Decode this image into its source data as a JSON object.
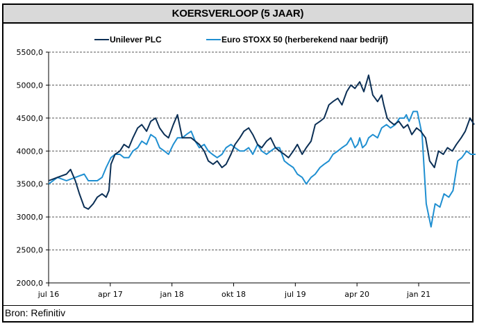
{
  "header": {
    "title": "KOERSVERLOOP (5 JAAR)"
  },
  "footer": {
    "source": "Bron: Refinitiv"
  },
  "colors": {
    "unilever": "#0b2f55",
    "stoxx": "#1f8fd1",
    "grid": "#555555"
  },
  "chart_data": {
    "type": "line",
    "title": "KOERSVERLOOP (5 JAAR)",
    "xlabel": "",
    "ylabel": "",
    "x_unit": "months since jul 16",
    "xlim": [
      0,
      62.5
    ],
    "ylim": [
      2000,
      5500
    ],
    "yticks": [
      2000,
      2500,
      3000,
      3500,
      4000,
      4500,
      5000,
      5500
    ],
    "ytick_labels": [
      "2000,0",
      "2500,0",
      "3000,0",
      "3500,0",
      "4000,0",
      "4500,0",
      "5000,0",
      "5500,0"
    ],
    "xticks": [
      0,
      9,
      18,
      27,
      36,
      45,
      54
    ],
    "xtick_labels": [
      "jul 16",
      "apr 17",
      "jan 18",
      "okt 18",
      "jul 19",
      "apr 20",
      "jan 21"
    ],
    "grid": true,
    "legend": "top",
    "series": [
      {
        "name": "Unilever PLC",
        "x": [
          0,
          1.3,
          2.6,
          3.2,
          3.9,
          4.5,
          5.2,
          5.8,
          6.5,
          7.1,
          7.8,
          8.4,
          8.8,
          9.1,
          9.7,
          10.4,
          11.0,
          11.7,
          12.3,
          13.0,
          13.6,
          14.3,
          14.9,
          15.6,
          16.2,
          16.9,
          17.5,
          18.2,
          18.8,
          19.5,
          20.8,
          22.0,
          22.7,
          23.3,
          24.0,
          24.6,
          25.3,
          25.9,
          26.6,
          27.2,
          27.9,
          28.5,
          29.2,
          29.8,
          30.5,
          31.1,
          31.8,
          32.4,
          33.1,
          33.7,
          34.4,
          35.0,
          35.7,
          36.3,
          37.0,
          37.6,
          38.3,
          38.9,
          39.6,
          40.2,
          40.9,
          41.5,
          42.2,
          42.8,
          43.5,
          44.1,
          44.7,
          45.4,
          46.0,
          46.7,
          47.3,
          48.0,
          48.6,
          48.9,
          49.4,
          49.8,
          50.4,
          51.1,
          51.8,
          52.4,
          53.0,
          53.7,
          54.3,
          55.0,
          55.6,
          56.3,
          56.9,
          57.6,
          58.2,
          58.9,
          59.5,
          60.2,
          60.8,
          61.5,
          62.1
        ],
        "values": [
          3550,
          3600,
          3650,
          3720,
          3550,
          3350,
          3150,
          3120,
          3200,
          3300,
          3350,
          3300,
          3400,
          3800,
          3950,
          4000,
          4100,
          4050,
          4200,
          4350,
          4400,
          4300,
          4450,
          4500,
          4350,
          4250,
          4200,
          4400,
          4550,
          4200,
          4200,
          4100,
          4000,
          3850,
          3800,
          3850,
          3750,
          3800,
          3950,
          4100,
          4200,
          4300,
          4350,
          4250,
          4100,
          4050,
          4150,
          4200,
          4050,
          4000,
          3950,
          3900,
          4000,
          4100,
          3950,
          4050,
          4150,
          4400,
          4450,
          4500,
          4700,
          4750,
          4800,
          4700,
          4900,
          5000,
          4950,
          5050,
          4900,
          5150,
          4850,
          4750,
          4850,
          4700,
          4500,
          4450,
          4400,
          4450,
          4350,
          4400,
          4250,
          4350,
          4300,
          4200,
          3850,
          3750,
          4000,
          3950,
          4050,
          4000,
          4100,
          4200,
          4300,
          4500,
          4400
        ]
      },
      {
        "name": "Euro STOXX 50 (herberekend naar bedrijf)",
        "x": [
          0,
          1.3,
          2.6,
          3.9,
          5.2,
          5.8,
          6.5,
          7.1,
          7.8,
          8.4,
          9.1,
          9.7,
          10.4,
          11.0,
          11.7,
          12.3,
          13.0,
          13.6,
          14.3,
          14.9,
          15.6,
          16.2,
          16.9,
          17.5,
          18.2,
          18.8,
          19.5,
          20.1,
          20.8,
          21.4,
          22.0,
          22.7,
          23.3,
          23.9,
          24.6,
          25.3,
          25.9,
          26.6,
          27.2,
          27.9,
          28.5,
          29.2,
          29.8,
          30.5,
          31.1,
          31.8,
          32.4,
          33.1,
          33.7,
          34.4,
          35.0,
          35.7,
          36.3,
          37.0,
          37.6,
          38.3,
          38.9,
          39.6,
          40.2,
          40.9,
          41.5,
          42.2,
          42.8,
          43.5,
          44.1,
          44.3,
          44.7,
          45.1,
          45.4,
          45.8,
          46.3,
          46.7,
          47.3,
          48.0,
          48.6,
          49.3,
          49.9,
          50.6,
          51.2,
          51.9,
          52.2,
          52.6,
          53.2,
          53.8,
          54.5,
          55.1,
          55.8,
          56.4,
          57.1,
          57.7,
          58.4,
          59.0,
          59.7,
          60.3,
          61.0,
          61.6,
          62.3
        ],
        "values": [
          3500,
          3600,
          3550,
          3600,
          3650,
          3550,
          3550,
          3550,
          3600,
          3750,
          3900,
          3950,
          3950,
          3900,
          3900,
          4000,
          4050,
          4150,
          4100,
          4250,
          4200,
          4050,
          4000,
          3950,
          4100,
          4200,
          4200,
          4250,
          4300,
          4150,
          4050,
          4100,
          4000,
          3950,
          3900,
          3950,
          4050,
          4100,
          4050,
          4000,
          4000,
          4050,
          3950,
          4100,
          4000,
          3950,
          4000,
          4050,
          4050,
          3850,
          3800,
          3750,
          3650,
          3600,
          3500,
          3600,
          3650,
          3750,
          3800,
          3850,
          3950,
          4000,
          4050,
          4100,
          4200,
          4150,
          4050,
          4100,
          4200,
          4050,
          4100,
          4200,
          4250,
          4200,
          4350,
          4400,
          4350,
          4400,
          4500,
          4500,
          4550,
          4450,
          4600,
          4600,
          4250,
          3200,
          2850,
          3200,
          3150,
          3350,
          3300,
          3400,
          3850,
          3900,
          4000,
          3950,
          3950
        ]
      }
    ]
  }
}
